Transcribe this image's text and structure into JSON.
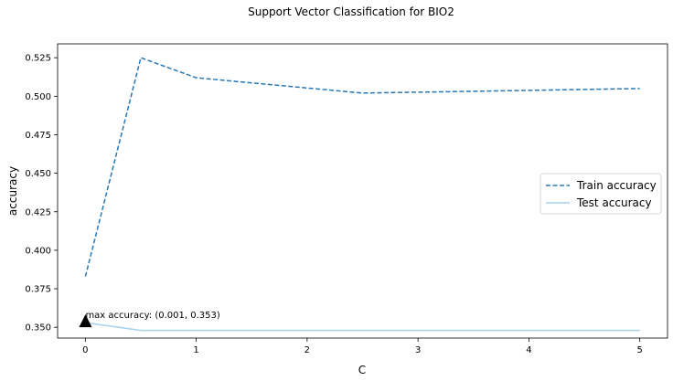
{
  "chart_data": {
    "type": "line",
    "title": "Support Vector Classification for BIO2",
    "xlabel": "C",
    "ylabel": "accuracy",
    "xlim": [
      -0.25,
      5.25
    ],
    "ylim": [
      0.343,
      0.534
    ],
    "x_ticks": [
      0,
      1,
      2,
      3,
      4,
      5
    ],
    "y_ticks": [
      0.35,
      0.375,
      0.4,
      0.425,
      0.45,
      0.475,
      0.5,
      0.525
    ],
    "x_tick_labels": [
      "0",
      "1",
      "2",
      "3",
      "4",
      "5"
    ],
    "y_tick_labels": [
      "0.350",
      "0.375",
      "0.400",
      "0.425",
      "0.450",
      "0.475",
      "0.500",
      "0.525"
    ],
    "grid": false,
    "legend_position": "center-right",
    "series": [
      {
        "name": "Train accuracy",
        "style": "dashed",
        "color": "#2878b5",
        "x": [
          0.001,
          0.5,
          1,
          2.5,
          5
        ],
        "y": [
          0.383,
          0.525,
          0.512,
          0.502,
          0.505
        ]
      },
      {
        "name": "Test accuracy",
        "style": "solid",
        "color": "#a6d1ec",
        "x": [
          0.001,
          0.5,
          1,
          2.5,
          5
        ],
        "y": [
          0.353,
          0.348,
          0.348,
          0.348,
          0.348
        ]
      }
    ],
    "annotation": {
      "text": "max accuracy: (0.001, 0.353)",
      "x": 0.001,
      "y": 0.353,
      "marker": "triangle"
    }
  }
}
